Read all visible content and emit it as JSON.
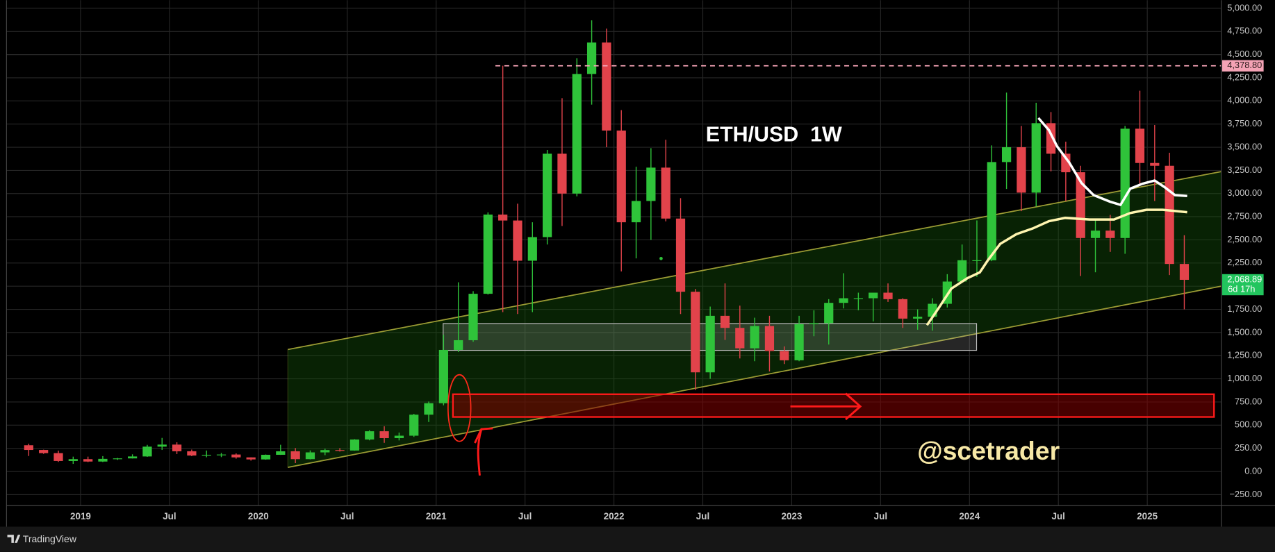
{
  "chart_data": {
    "type": "candlestick",
    "title": "ETH/USD  1W",
    "watermark": "@scetrader",
    "brand": "TradingView",
    "up_color": "#2fc33a",
    "down_color": "#e2434b",
    "grid": true,
    "xlim": [
      "2018-08",
      "2025-06"
    ],
    "ylim": [
      -368,
      5088
    ],
    "xticks": [
      {
        "value": "2019-01",
        "label": "2019"
      },
      {
        "value": "2019-07",
        "label": "Jul"
      },
      {
        "value": "2020-01",
        "label": "2020"
      },
      {
        "value": "2020-07",
        "label": "Jul"
      },
      {
        "value": "2021-01",
        "label": "2021"
      },
      {
        "value": "2021-07",
        "label": "Jul"
      },
      {
        "value": "2022-01",
        "label": "2022"
      },
      {
        "value": "2022-07",
        "label": "Jul"
      },
      {
        "value": "2023-01",
        "label": "2023"
      },
      {
        "value": "2023-07",
        "label": "Jul"
      },
      {
        "value": "2024-01",
        "label": "2024"
      },
      {
        "value": "2024-07",
        "label": "Jul"
      },
      {
        "value": "2025-01",
        "label": "2025"
      }
    ],
    "yticks": [
      {
        "value": -250,
        "label": "−250.00"
      },
      {
        "value": 0,
        "label": "0.00"
      },
      {
        "value": 250,
        "label": "250.00"
      },
      {
        "value": 500,
        "label": "500.00"
      },
      {
        "value": 750,
        "label": "750.00"
      },
      {
        "value": 1000,
        "label": "1,000.00"
      },
      {
        "value": 1250,
        "label": "1,250.00"
      },
      {
        "value": 1500,
        "label": "1,500.00"
      },
      {
        "value": 1750,
        "label": "1,750.00"
      },
      {
        "value": 2000,
        "label": "2,000.00"
      },
      {
        "value": 2250,
        "label": "2,250.00"
      },
      {
        "value": 2500,
        "label": "2,500.00"
      },
      {
        "value": 2750,
        "label": "2,750.00"
      },
      {
        "value": 3000,
        "label": "3,000.00"
      },
      {
        "value": 3250,
        "label": "3,250.00"
      },
      {
        "value": 3500,
        "label": "3,500.00"
      },
      {
        "value": 3750,
        "label": "3,750.00"
      },
      {
        "value": 4000,
        "label": "4,000.00"
      },
      {
        "value": 4250,
        "label": "4,250.00"
      },
      {
        "value": 4500,
        "label": "4,500.00"
      },
      {
        "value": 4750,
        "label": "4,750.00"
      },
      {
        "value": 5000,
        "label": "5,000.00"
      }
    ],
    "level": {
      "value": 4378.8,
      "label": "4,378.80",
      "start": "2021-05",
      "color": "#f4a3b5"
    },
    "last_price": {
      "value": 2068.89,
      "label": "2,068.89",
      "countdown": "6d 17h",
      "color": "#22c55e"
    },
    "x": [
      "2018-09",
      "2018-10",
      "2018-11",
      "2018-12",
      "2019-01",
      "2019-02",
      "2019-03",
      "2019-04",
      "2019-05",
      "2019-06",
      "2019-07",
      "2019-08",
      "2019-09",
      "2019-10",
      "2019-11",
      "2019-12",
      "2020-01",
      "2020-02",
      "2020-03",
      "2020-04",
      "2020-05",
      "2020-06",
      "2020-07",
      "2020-08",
      "2020-09",
      "2020-10",
      "2020-11",
      "2020-12",
      "2021-01",
      "2021-02",
      "2021-03",
      "2021-04",
      "2021-05",
      "2021-06",
      "2021-07",
      "2021-08",
      "2021-09",
      "2021-10",
      "2021-11",
      "2021-12",
      "2022-01",
      "2022-02",
      "2022-03",
      "2022-04",
      "2022-05",
      "2022-06",
      "2022-07",
      "2022-08",
      "2022-09",
      "2022-10",
      "2022-11",
      "2022-12",
      "2023-01",
      "2023-02",
      "2023-03",
      "2023-04",
      "2023-05",
      "2023-06",
      "2023-07",
      "2023-08",
      "2023-09",
      "2023-10",
      "2023-11",
      "2023-12",
      "2024-01",
      "2024-02",
      "2024-03",
      "2024-04",
      "2024-05",
      "2024-06",
      "2024-07",
      "2024-08",
      "2024-09",
      "2024-10",
      "2024-11",
      "2024-12",
      "2025-01",
      "2025-02",
      "2025-03"
    ],
    "open": [
      283,
      232,
      198,
      113,
      133,
      107,
      136,
      141,
      162,
      268,
      290,
      218,
      172,
      180,
      183,
      152,
      130,
      180,
      218,
      133,
      206,
      231,
      226,
      345,
      434,
      360,
      386,
      613,
      737,
      1312,
      1417,
      1918,
      2773,
      2709,
      2275,
      2530,
      3430,
      3000,
      4290,
      4630,
      3680,
      2690,
      2920,
      3280,
      2730,
      1940,
      1070,
      1680,
      1550,
      1330,
      1570,
      1300,
      1200,
      1590,
      1600,
      1820,
      1870,
      1870,
      1930,
      1860,
      1650,
      1670,
      1810,
      2050,
      2280,
      2280,
      3340,
      3500,
      3010,
      3760,
      3430,
      3230,
      2520,
      2600,
      2520,
      3700,
      3330,
      3300,
      2240
    ],
    "high": [
      300,
      235,
      225,
      160,
      160,
      166,
      146,
      185,
      287,
      362,
      315,
      236,
      226,
      200,
      195,
      153,
      183,
      288,
      253,
      227,
      245,
      252,
      349,
      445,
      488,
      420,
      622,
      755,
      1476,
      2042,
      1946,
      2797,
      4380,
      2890,
      2690,
      3470,
      4030,
      4460,
      4870,
      4780,
      3900,
      3290,
      3490,
      3580,
      2950,
      1970,
      1780,
      2030,
      1790,
      1660,
      1680,
      1350,
      1680,
      1740,
      1860,
      2140,
      1930,
      1930,
      2030,
      1870,
      1750,
      1870,
      2130,
      2450,
      2710,
      3520,
      4090,
      3730,
      3980,
      3880,
      3560,
      3300,
      2730,
      2770,
      3730,
      4110,
      3740,
      3440,
      2550
    ],
    "low": [
      167,
      190,
      103,
      82,
      101,
      102,
      125,
      140,
      158,
      232,
      188,
      165,
      153,
      155,
      138,
      117,
      127,
      179,
      90,
      130,
      176,
      215,
      224,
      336,
      309,
      335,
      373,
      534,
      714,
      1290,
      1400,
      1910,
      1720,
      1700,
      1720,
      2450,
      2650,
      2970,
      3960,
      3500,
      2160,
      2300,
      2500,
      2700,
      1700,
      880,
      1000,
      1420,
      1220,
      1190,
      1080,
      1160,
      1190,
      1460,
      1370,
      1760,
      1740,
      1620,
      1830,
      1550,
      1530,
      1520,
      1770,
      2050,
      2100,
      2270,
      3050,
      2810,
      2860,
      3240,
      2920,
      2110,
      2150,
      2370,
      2350,
      3100,
      2920,
      2120,
      1750
    ],
    "close": [
      232,
      198,
      113,
      133,
      107,
      136,
      141,
      162,
      268,
      290,
      218,
      172,
      180,
      183,
      152,
      130,
      180,
      218,
      133,
      206,
      231,
      226,
      345,
      434,
      360,
      386,
      613,
      737,
      1312,
      1417,
      1918,
      2773,
      2709,
      2275,
      2530,
      3430,
      3000,
      4290,
      4630,
      3680,
      2690,
      2920,
      3280,
      2730,
      1940,
      1070,
      1680,
      1550,
      1330,
      1570,
      1300,
      1200,
      1590,
      1600,
      1820,
      1870,
      1870,
      1930,
      1860,
      1650,
      1670,
      1810,
      2050,
      2280,
      2280,
      3340,
      3500,
      3010,
      3760,
      3430,
      3230,
      2520,
      2600,
      2520,
      3700,
      3330,
      3300,
      2240,
      2068.89
    ]
  }
}
